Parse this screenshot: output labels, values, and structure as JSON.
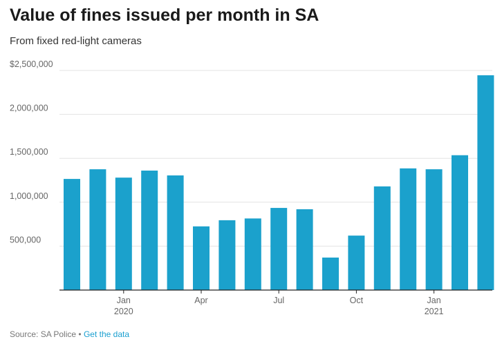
{
  "header": {
    "title": "Value of fines issued per month in SA",
    "subtitle": "From fixed red-light cameras"
  },
  "footer": {
    "source": "Source: SA Police",
    "separator": "•",
    "link": "Get the data"
  },
  "colors": {
    "bar": "#1ba1cc",
    "grid": "#e3e3e3",
    "axis": "#222222",
    "tick_text": "#666666",
    "link": "#1a9fd0"
  },
  "chart_data": {
    "type": "bar",
    "title": "Value of fines issued per month in SA",
    "subtitle": "From fixed red-light cameras",
    "xlabel": "",
    "ylabel": "",
    "ylim": [
      0,
      2500000
    ],
    "y_ticks": [
      {
        "value": 500000,
        "label": "500,000"
      },
      {
        "value": 1000000,
        "label": "1,000,000"
      },
      {
        "value": 1500000,
        "label": "1,500,000"
      },
      {
        "value": 2000000,
        "label": "2,000,000"
      },
      {
        "value": 2500000,
        "label": "$2,500,000"
      }
    ],
    "categories": [
      "Nov 2019",
      "Dec 2019",
      "Jan 2020",
      "Feb 2020",
      "Mar 2020",
      "Apr 2020",
      "May 2020",
      "Jun 2020",
      "Jul 2020",
      "Aug 2020",
      "Sep 2020",
      "Oct 2020",
      "Nov 2020",
      "Dec 2020",
      "Jan 2021",
      "Feb 2021",
      "Mar 2021"
    ],
    "values": [
      1265000,
      1375000,
      1280000,
      1360000,
      1305000,
      725000,
      795000,
      815000,
      935000,
      920000,
      370000,
      620000,
      1180000,
      1385000,
      1375000,
      1535000,
      2445000
    ],
    "x_ticks": [
      {
        "index": 2,
        "label": "Jan",
        "sublabel": "2020"
      },
      {
        "index": 5,
        "label": "Apr",
        "sublabel": ""
      },
      {
        "index": 8,
        "label": "Jul",
        "sublabel": ""
      },
      {
        "index": 11,
        "label": "Oct",
        "sublabel": ""
      },
      {
        "index": 14,
        "label": "Jan",
        "sublabel": "2021"
      }
    ],
    "grid": true,
    "legend": "none"
  }
}
